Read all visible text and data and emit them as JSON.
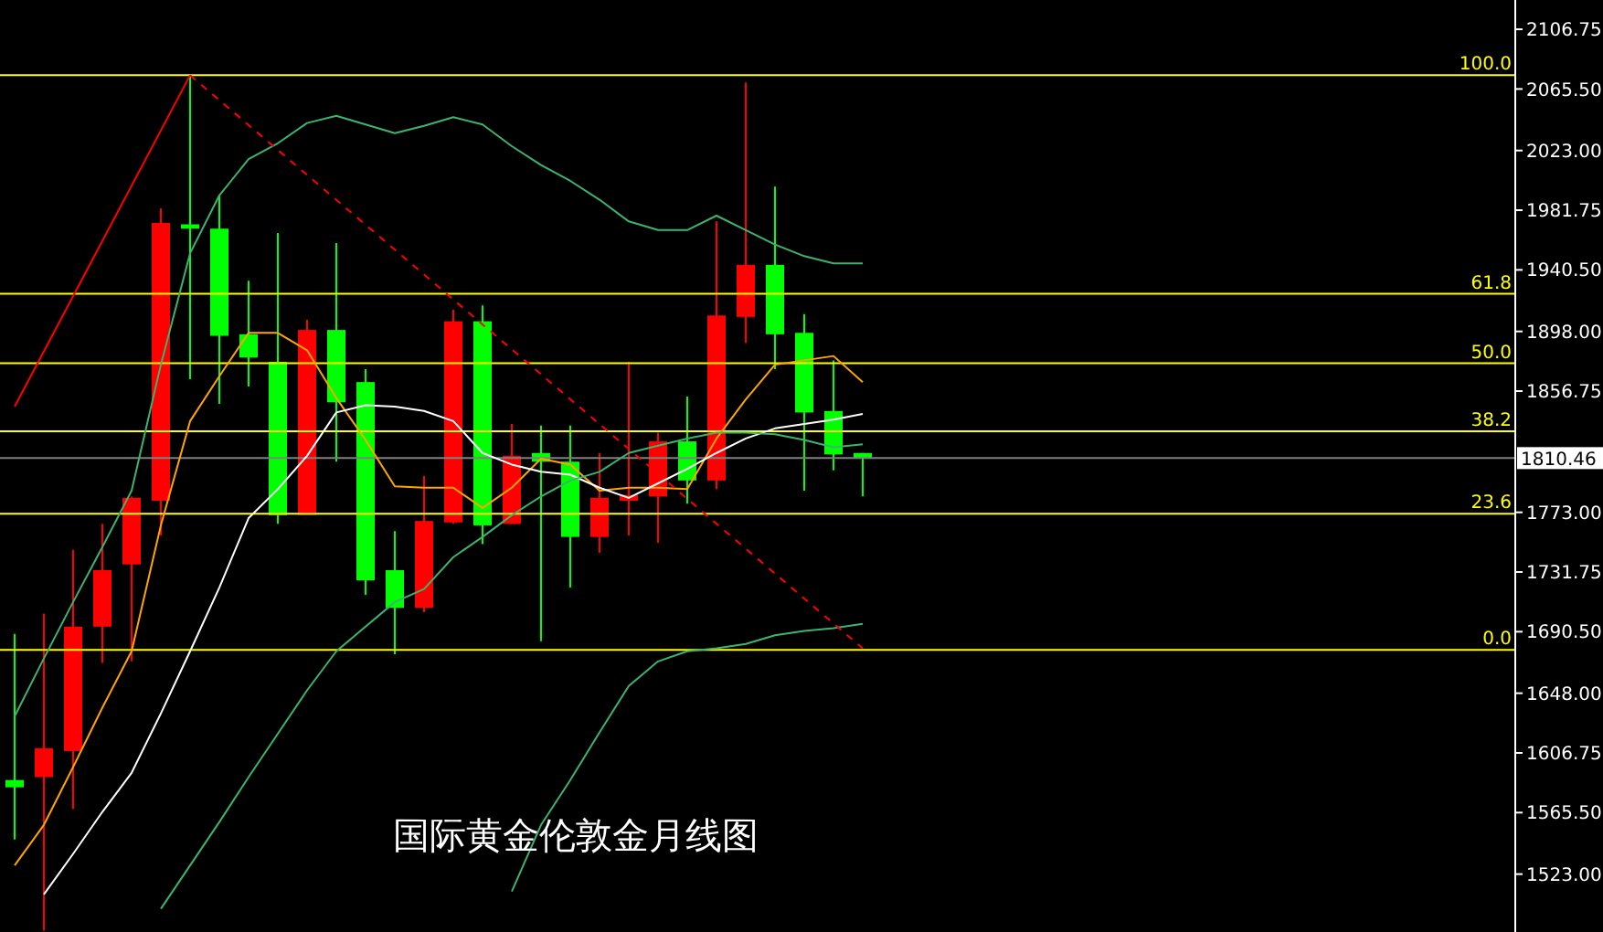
{
  "chart_data": {
    "type": "candlestick",
    "title": "国际黄金伦敦金月线图",
    "categories": [
      null,
      null,
      null,
      null,
      null,
      null,
      null,
      null,
      null,
      null,
      null,
      null,
      null,
      null,
      null,
      null,
      null,
      null,
      null,
      null,
      null,
      null,
      null,
      null,
      null,
      null,
      null,
      null,
      null,
      null
    ],
    "ohlc": [
      [
        1588,
        1689,
        1547,
        1583
      ],
      [
        1590,
        1703,
        1484,
        1610
      ],
      [
        1608,
        1747,
        1568,
        1694
      ],
      [
        1694,
        1765,
        1669,
        1733
      ],
      [
        1737,
        1784,
        1670,
        1783
      ],
      [
        1781,
        1983,
        1757,
        1973
      ],
      [
        1972,
        2075,
        1865,
        1969
      ],
      [
        1969,
        1992,
        1848,
        1895
      ],
      [
        1896,
        1933,
        1860,
        1880
      ],
      [
        1877,
        1966,
        1765,
        1771
      ],
      [
        1771,
        1906,
        1771,
        1899
      ],
      [
        1899,
        1959,
        1808,
        1849
      ],
      [
        1863,
        1872,
        1716,
        1726
      ],
      [
        1733,
        1760,
        1675,
        1707
      ],
      [
        1707,
        1798,
        1704,
        1767
      ],
      [
        1766,
        1913,
        1765,
        1905
      ],
      [
        1905,
        1916,
        1751,
        1764
      ],
      [
        1765,
        1834,
        1765,
        1812
      ],
      [
        1814,
        1833,
        1684,
        1808
      ],
      [
        1808,
        1833,
        1721,
        1756
      ],
      [
        1756,
        1814,
        1745,
        1783
      ],
      [
        1781,
        1877,
        1757,
        1785
      ],
      [
        1784,
        1828,
        1752,
        1822
      ],
      [
        1822,
        1853,
        1779,
        1795
      ],
      [
        1795,
        1974,
        1789,
        1909
      ],
      [
        1908,
        2070,
        1890,
        1944
      ],
      [
        1944,
        1998,
        1872,
        1896
      ],
      [
        1897,
        1910,
        1788,
        1842
      ],
      [
        1843,
        1878,
        1802,
        1813
      ],
      [
        1814,
        1814,
        1784,
        1810
      ]
    ],
    "colors": [
      "#00ff00",
      "#ff0000",
      "#ff0000",
      "#ff0000",
      "#ff0000",
      "#ff0000",
      "#00ff00",
      "#00ff00",
      "#00ff00",
      "#00ff00",
      "#ff0000",
      "#00ff00",
      "#00ff00",
      "#00ff00",
      "#ff0000",
      "#ff0000",
      "#00ff00",
      "#ff0000",
      "#00ff00",
      "#00ff00",
      "#ff0000",
      "#ff0000",
      "#ff0000",
      "#00ff00",
      "#ff0000",
      "#ff0000",
      "#00ff00",
      "#00ff00",
      "#00ff00",
      "#00ff00"
    ],
    "series": [
      {
        "type": "line",
        "color": "#ffa500",
        "values": [
          1529,
          1557,
          1597,
          1638,
          1677,
          1764,
          1836,
          1867,
          1897,
          1897,
          1885,
          1852,
          1823,
          1791,
          1790,
          1790,
          1776,
          1790,
          1810,
          1806,
          1788,
          1790,
          1790,
          1789,
          1824,
          1851,
          1875,
          1878,
          1881,
          1863
        ]
      },
      {
        "type": "line",
        "color": "#ffffff",
        "values": [
          null,
          1509,
          1537,
          1566,
          1593,
          1634,
          1677,
          1721,
          1769,
          1789,
          1812,
          1842,
          1847,
          1846,
          1843,
          1836,
          1814,
          1806,
          1801,
          1799,
          1790,
          1783,
          1793,
          1803,
          1814,
          1824,
          1831,
          1834,
          1837,
          1841
        ]
      },
      {
        "type": "line",
        "color": "#3cb371",
        "values": [
          1632,
          1672,
          1711,
          1749,
          1788,
          1875,
          1952,
          1992,
          2017,
          2028,
          2042,
          2047,
          2041,
          2035,
          2040,
          2046,
          2041,
          2026,
          2013,
          2002,
          1989,
          1974,
          1968,
          1968,
          1978,
          1968,
          1958,
          1950,
          1945,
          1945
        ]
      },
      {
        "type": "line",
        "color": "#3cb371",
        "values": [
          null,
          null,
          null,
          null,
          null,
          1499,
          1529,
          1559,
          1590,
          1620,
          1650,
          1677,
          1694,
          1711,
          1720,
          1742,
          1756,
          1771,
          1784,
          1795,
          1801,
          1814,
          1819,
          1824,
          1828,
          1828,
          1827,
          1823,
          1818,
          1820
        ]
      },
      {
        "type": "line",
        "color": "#3cb371",
        "values": [
          null,
          null,
          null,
          null,
          null,
          null,
          null,
          null,
          null,
          null,
          null,
          null,
          null,
          null,
          null,
          null,
          null,
          1511,
          1557,
          1588,
          1621,
          1653,
          1670,
          1677,
          1679,
          1682,
          1688,
          1691,
          1693,
          1696
        ]
      },
      {
        "type": "line",
        "color": "#ff0000",
        "values": [
          1846,
          null,
          null,
          null,
          null,
          null,
          2075,
          null,
          null,
          null,
          null,
          null,
          null,
          null,
          null,
          null,
          null,
          null,
          null,
          null,
          null,
          null,
          null,
          null,
          null,
          null,
          null,
          null,
          null,
          null
        ]
      },
      {
        "type": "line",
        "color": "#ff0000",
        "line_style": "dashed",
        "values": [
          null,
          null,
          null,
          null,
          null,
          null,
          2075,
          null,
          null,
          null,
          null,
          null,
          null,
          null,
          null,
          null,
          null,
          null,
          null,
          null,
          null,
          null,
          null,
          null,
          null,
          null,
          null,
          null,
          null,
          1679
        ]
      }
    ],
    "ylim": [
      1483,
      2127
    ],
    "yticks": [
      {
        "value": 2106.75,
        "label": "2106.75"
      },
      {
        "value": 2065.5,
        "label": "2065.50"
      },
      {
        "value": 2023,
        "label": "2023.00"
      },
      {
        "value": 1981.75,
        "label": "1981.75"
      },
      {
        "value": 1940.5,
        "label": "1940.50"
      },
      {
        "value": 1898,
        "label": "1898.00"
      },
      {
        "value": 1856.75,
        "label": "1856.75"
      },
      {
        "value": 1773,
        "label": "1773.00"
      },
      {
        "value": 1731.75,
        "label": "1731.75"
      },
      {
        "value": 1690.5,
        "label": "1690.50"
      },
      {
        "value": 1648,
        "label": "1648.00"
      },
      {
        "value": 1606.75,
        "label": "1606.75"
      },
      {
        "value": 1565.5,
        "label": "1565.50"
      },
      {
        "value": 1523,
        "label": "1523.00"
      }
    ],
    "ref_lines": [
      {
        "axis": "y",
        "value": 2075,
        "color": "#ffff00"
      },
      {
        "axis": "y",
        "value": 1924,
        "color": "#ffff00"
      },
      {
        "axis": "y",
        "value": 1876,
        "color": "#ffff00"
      },
      {
        "axis": "y",
        "value": 1829,
        "color": "#ffff00"
      },
      {
        "axis": "y",
        "value": 1772,
        "color": "#ffff00"
      },
      {
        "axis": "y",
        "value": 1678,
        "color": "#ffff00"
      },
      {
        "axis": "y",
        "value": 1810.46,
        "label": "1810.46",
        "color": "#808080"
      }
    ],
    "annotations": [
      {
        "text": "100.0",
        "y": 2075
      },
      {
        "text": "61.8",
        "y": 1924
      },
      {
        "text": "50.0",
        "y": 1876
      },
      {
        "text": "38.2",
        "y": 1829
      },
      {
        "text": "23.6",
        "y": 1772
      },
      {
        "text": "0.0",
        "y": 1678
      }
    ]
  }
}
